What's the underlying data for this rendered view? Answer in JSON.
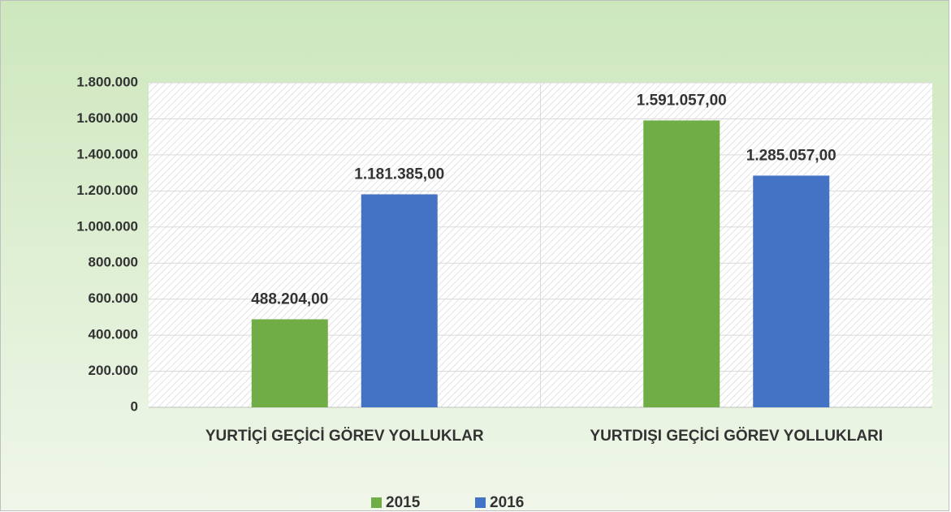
{
  "chart_data": {
    "type": "bar",
    "categories": [
      "YURTİÇİ GEÇİCİ GÖREV YOLLUKLAR",
      "YURTDIŞI GEÇİCİ GÖREV YOLLUKLARI"
    ],
    "series": [
      {
        "name": "2015",
        "color": "#70ad47",
        "values": [
          488204,
          1591057
        ],
        "value_labels": [
          "488.204,00",
          "1.591.057,00"
        ]
      },
      {
        "name": "2016",
        "color": "#4472c4",
        "values": [
          1181385,
          1285057
        ],
        "value_labels": [
          "1.181.385,00",
          "1.285.057,00"
        ]
      }
    ],
    "ylim": [
      0,
      1800000
    ],
    "yticks": [
      0,
      {
        "value": 200000,
        "label": "200.000"
      },
      {
        "value": 400000,
        "label": "400.000"
      },
      {
        "value": 600000,
        "label": "600.000"
      },
      {
        "value": 800000,
        "label": "800.000"
      },
      {
        "value": 1000000,
        "label": "1.000.000"
      },
      {
        "value": 1200000,
        "label": "1.200.000"
      },
      {
        "value": 1400000,
        "label": "1.400.000"
      },
      {
        "value": 1600000,
        "label": "1.600.000"
      },
      {
        "value": 1800000,
        "label": "1.800.000"
      }
    ],
    "grid": true,
    "legend": "bottom"
  }
}
